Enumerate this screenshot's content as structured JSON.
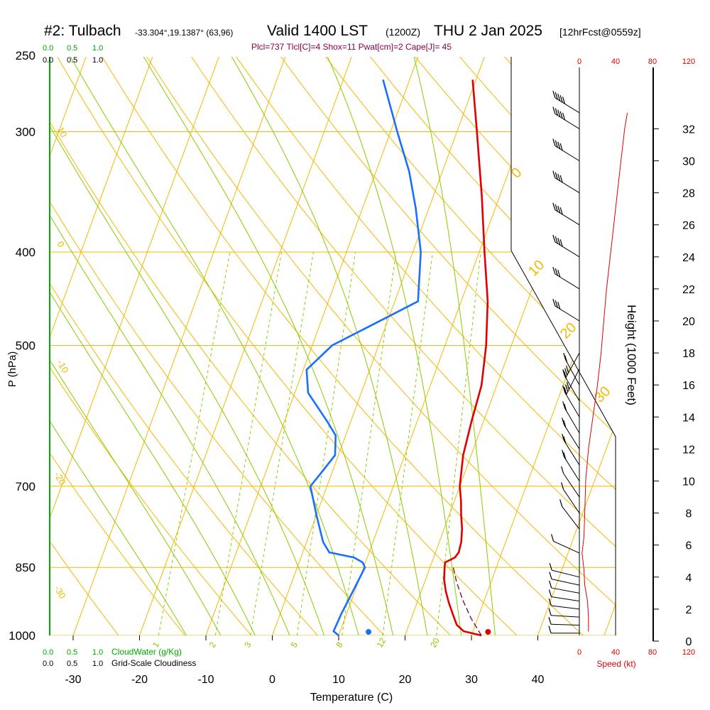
{
  "header": {
    "station": "#2: Tulbach",
    "coords": "-33.304°,19.1387° (63,96)",
    "valid": "Valid 1400 LST",
    "zulu": "(1200Z)",
    "date": "THU 2 Jan 2025",
    "forecast": "[12hrFcst@0559z]",
    "indices": "Plcl=737 Tlcl[C]=4 Shox=11 Pwat[cm]=2 Cape[J]= 45"
  },
  "colors": {
    "isotherm": "#f5b800",
    "dry_adiabat": "#f5b800",
    "moist_adiabat": "#88cc00",
    "mixing_ratio": "#88cc00",
    "temperature": "#e00000",
    "dewpoint": "#1a6fff",
    "parcel": "#7a0040",
    "cloud": "#00aa00",
    "index_text": "#8b0045",
    "speed": "#dd0000"
  },
  "cloud_scale": {
    "top_green": [
      "0.0",
      "0.5",
      "1.0"
    ],
    "top_black": [
      "0.0",
      "0.5",
      "1.0"
    ],
    "bottom_green": [
      "0.0",
      "0.5",
      "1.0"
    ],
    "bottom_black": [
      "0.0",
      "0.5",
      "1.0"
    ],
    "cloudwater_label": "CloudWater (g/Kg)",
    "cloudiness_label": "Grid-Scale Cloudiness"
  },
  "speed_scale": {
    "ticks": [
      "0",
      "40",
      "80",
      "120"
    ],
    "label": "Speed (kt)"
  },
  "chart_data": {
    "type": "line",
    "title": "#2: Tulbach  Valid 1400 LST (1200Z) THU 2 Jan 2025",
    "xlabel": "Temperature (C)",
    "ylabel": "P (hPa)",
    "y2label": "Height (1000 Feet)",
    "xlim": [
      -30,
      40
    ],
    "ylim": [
      1000,
      250
    ],
    "x_ticks": [
      "-30",
      "-20",
      "-10",
      "0",
      "10",
      "20",
      "30",
      "40"
    ],
    "p_ticks": [
      "250",
      "300",
      "400",
      "500",
      "700",
      "850",
      "1000"
    ],
    "height_ticks": [
      "0",
      "2",
      "4",
      "6",
      "8",
      "10",
      "12",
      "14",
      "16",
      "18",
      "20",
      "22",
      "24",
      "26",
      "28",
      "30",
      "32"
    ],
    "mixing_ratio_labels": [
      "1",
      "2",
      "3",
      "5",
      "8",
      "12",
      "20"
    ],
    "isotherm_labels": [
      "10",
      "0",
      "-10",
      "-20",
      "-30"
    ],
    "theta_labels": [
      "0",
      "10",
      "20",
      "30"
    ],
    "series": [
      {
        "name": "Temperature",
        "points": [
          [
            1000,
            31.5
          ],
          [
            990,
            28.6
          ],
          [
            975,
            27.2
          ],
          [
            950,
            26.0
          ],
          [
            925,
            24.8
          ],
          [
            900,
            23.7
          ],
          [
            875,
            22.8
          ],
          [
            850,
            22.2
          ],
          [
            840,
            22.0
          ],
          [
            830,
            23.2
          ],
          [
            820,
            23.5
          ],
          [
            800,
            23.3
          ],
          [
            775,
            22.7
          ],
          [
            750,
            21.8
          ],
          [
            725,
            21.0
          ],
          [
            700,
            20.0
          ],
          [
            650,
            18.8
          ],
          [
            600,
            18.2
          ],
          [
            550,
            17.7
          ],
          [
            500,
            16.2
          ],
          [
            450,
            14.0
          ],
          [
            400,
            10.8
          ],
          [
            350,
            7.3
          ],
          [
            300,
            3.0
          ],
          [
            265,
            -0.5
          ]
        ]
      },
      {
        "name": "Dewpoint",
        "points": [
          [
            1000,
            10.0
          ],
          [
            990,
            9.0
          ],
          [
            950,
            9.2
          ],
          [
            900,
            9.7
          ],
          [
            850,
            10.2
          ],
          [
            840,
            9.6
          ],
          [
            830,
            8.0
          ],
          [
            820,
            4.0
          ],
          [
            800,
            2.5
          ],
          [
            750,
            0.0
          ],
          [
            700,
            -2.5
          ],
          [
            675,
            -1.5
          ],
          [
            650,
            -0.5
          ],
          [
            620,
            -1.5
          ],
          [
            600,
            -3.5
          ],
          [
            560,
            -8.0
          ],
          [
            530,
            -9.5
          ],
          [
            500,
            -7.0
          ],
          [
            450,
            3.5
          ],
          [
            400,
            1.2
          ],
          [
            360,
            -2.0
          ],
          [
            330,
            -5.0
          ],
          [
            300,
            -9.0
          ],
          [
            265,
            -14.0
          ]
        ]
      },
      {
        "name": "Parcel",
        "points": [
          [
            1000,
            31.5
          ],
          [
            960,
            29.0
          ],
          [
            920,
            26.8
          ],
          [
            880,
            24.8
          ],
          [
            845,
            23.3
          ]
        ]
      }
    ],
    "surface_markers": [
      {
        "name": "temperature",
        "p": 1000,
        "t": 32.5
      },
      {
        "name": "dewpoint",
        "p": 1000,
        "t": 14.5
      }
    ],
    "wind_speed_profile": [
      [
        0.6,
        10
      ],
      [
        1.5,
        10
      ],
      [
        2.5,
        9
      ],
      [
        3.5,
        6
      ],
      [
        4.5,
        5
      ],
      [
        5.5,
        3
      ],
      [
        6.5,
        5
      ],
      [
        8,
        6
      ],
      [
        10,
        7
      ],
      [
        12,
        10
      ],
      [
        14,
        15
      ],
      [
        16,
        20
      ],
      [
        18,
        24
      ],
      [
        20,
        27
      ],
      [
        22,
        30
      ],
      [
        24,
        34
      ],
      [
        26,
        38
      ],
      [
        28,
        42
      ],
      [
        30,
        46
      ],
      [
        32,
        50
      ],
      [
        33,
        53
      ]
    ],
    "wind_barbs": [
      {
        "h": 0.5,
        "kt": 10,
        "dir": 180
      },
      {
        "h": 1.0,
        "kt": 10,
        "dir": 185
      },
      {
        "h": 1.5,
        "kt": 10,
        "dir": 190
      },
      {
        "h": 2.0,
        "kt": 10,
        "dir": 200
      },
      {
        "h": 2.5,
        "kt": 10,
        "dir": 205
      },
      {
        "h": 3.0,
        "kt": 10,
        "dir": 210
      },
      {
        "h": 3.5,
        "kt": 10,
        "dir": 215
      },
      {
        "h": 4.0,
        "kt": 10,
        "dir": 220
      },
      {
        "h": 5.5,
        "kt": 10,
        "dir": 250
      },
      {
        "h": 7.0,
        "kt": 10,
        "dir": 330
      },
      {
        "h": 8.0,
        "kt": 10,
        "dir": 340
      },
      {
        "h": 9.0,
        "kt": 10,
        "dir": 340
      },
      {
        "h": 10.0,
        "kt": 15,
        "dir": 345
      },
      {
        "h": 11.0,
        "kt": 15,
        "dir": 345
      },
      {
        "h": 12.0,
        "kt": 15,
        "dir": 345
      },
      {
        "h": 13.0,
        "kt": 20,
        "dir": 350
      },
      {
        "h": 14.0,
        "kt": 20,
        "dir": 350
      },
      {
        "h": 15.0,
        "kt": 20,
        "dir": 350
      },
      {
        "h": 16.0,
        "kt": 20,
        "dir": 355
      },
      {
        "h": 17.0,
        "kt": 25,
        "dir": 0
      },
      {
        "h": 18.0,
        "kt": 25,
        "dir": 5
      },
      {
        "h": 20.0,
        "kt": 30,
        "dir": 270
      },
      {
        "h": 22.0,
        "kt": 30,
        "dir": 270
      },
      {
        "h": 24.0,
        "kt": 35,
        "dir": 270
      },
      {
        "h": 26.0,
        "kt": 35,
        "dir": 270
      },
      {
        "h": 28.0,
        "kt": 40,
        "dir": 270
      },
      {
        "h": 30.0,
        "kt": 40,
        "dir": 270
      },
      {
        "h": 32.0,
        "kt": 45,
        "dir": 270
      },
      {
        "h": 33.0,
        "kt": 45,
        "dir": 270
      }
    ],
    "grid": true
  }
}
